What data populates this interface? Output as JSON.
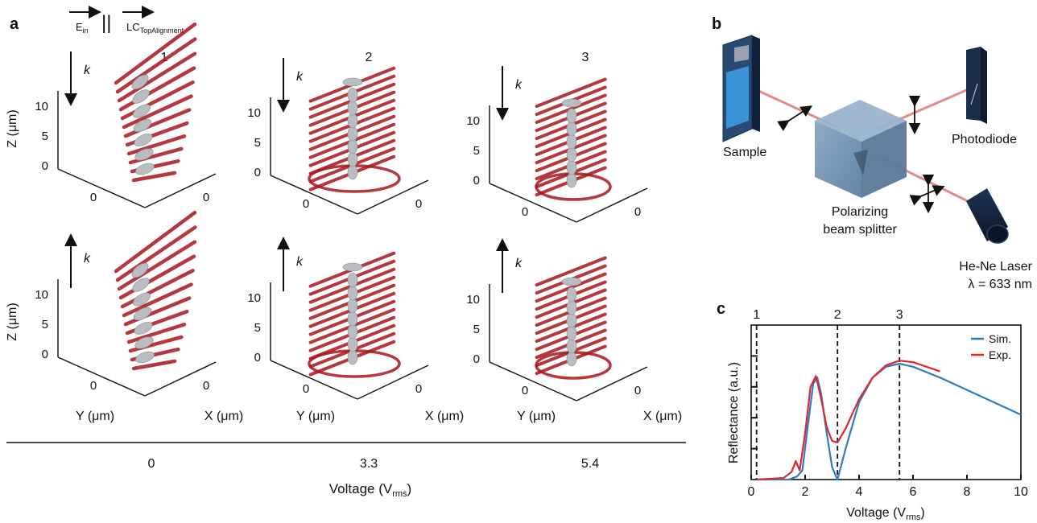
{
  "panel_a": {
    "letter": "a",
    "legend": {
      "e_label": "E",
      "e_sub": "in",
      "parallel": "||",
      "lc_label": "LC",
      "lc_sub": "TopAlignment"
    },
    "columns": [
      "1",
      "2",
      "3"
    ],
    "k_label": "k",
    "z_axis_label": "Z (μm)",
    "z_ticks": [
      "0",
      "5",
      "10"
    ],
    "horizontal_zero": "0",
    "y_axis_label": "Y (μm)",
    "x_axis_label": "X (μm)",
    "voltage_values": [
      "0",
      "3.3",
      "5.4"
    ],
    "voltage_label": "Voltage (V",
    "voltage_sub": "rms",
    "voltage_close": ")"
  },
  "panel_b": {
    "letter": "b",
    "sample_label": "Sample",
    "photodiode_label": "Photodiode",
    "splitter_line1": "Polarizing",
    "splitter_line2": "beam splitter",
    "laser_line1": "He-Ne Laser",
    "laser_line2": "λ = 633 nm",
    "colors": {
      "cube": "#6e8fb0",
      "laser": "#0d1f3a",
      "beam": "#e58a8a"
    }
  },
  "chart_data": {
    "type": "line",
    "letter": "c",
    "xlabel": "Voltage (V",
    "xlabel_sub": "rms",
    "xlabel_close": ")",
    "ylabel": "Reflectance (a.u.)",
    "xlim": [
      0,
      10
    ],
    "ylim": [
      0,
      1
    ],
    "xticks": [
      0,
      2,
      4,
      6,
      8,
      10
    ],
    "xtick_labels": [
      "0",
      "2",
      "4",
      "6",
      "8",
      "10"
    ],
    "markers": [
      {
        "label": "1",
        "x": 0.2
      },
      {
        "label": "2",
        "x": 3.2
      },
      {
        "label": "3",
        "x": 5.5
      }
    ],
    "legend_position": "top-right",
    "series": [
      {
        "name": "Sim.",
        "color": "#2f7bbf",
        "x": [
          0.2,
          1.4,
          1.7,
          1.9,
          2.1,
          2.3,
          2.45,
          2.6,
          2.8,
          3.0,
          3.2,
          3.5,
          4.0,
          4.5,
          5.0,
          5.5,
          6.0,
          7.0,
          8.0,
          9.0,
          10.0
        ],
        "y": [
          0.0,
          0.0,
          0.02,
          0.06,
          0.35,
          0.62,
          0.66,
          0.55,
          0.3,
          0.08,
          0.0,
          0.2,
          0.5,
          0.66,
          0.73,
          0.75,
          0.73,
          0.66,
          0.58,
          0.5,
          0.42
        ]
      },
      {
        "name": "Exp.",
        "color": "#e0262e",
        "x": [
          0.2,
          1.2,
          1.5,
          1.65,
          1.8,
          2.0,
          2.2,
          2.4,
          2.6,
          2.8,
          3.0,
          3.2,
          3.5,
          4.0,
          4.5,
          5.0,
          5.5,
          6.0,
          6.5,
          7.0
        ],
        "y": [
          0.0,
          0.01,
          0.05,
          0.12,
          0.06,
          0.3,
          0.6,
          0.67,
          0.52,
          0.34,
          0.25,
          0.24,
          0.33,
          0.52,
          0.66,
          0.74,
          0.77,
          0.76,
          0.73,
          0.7
        ]
      }
    ]
  }
}
